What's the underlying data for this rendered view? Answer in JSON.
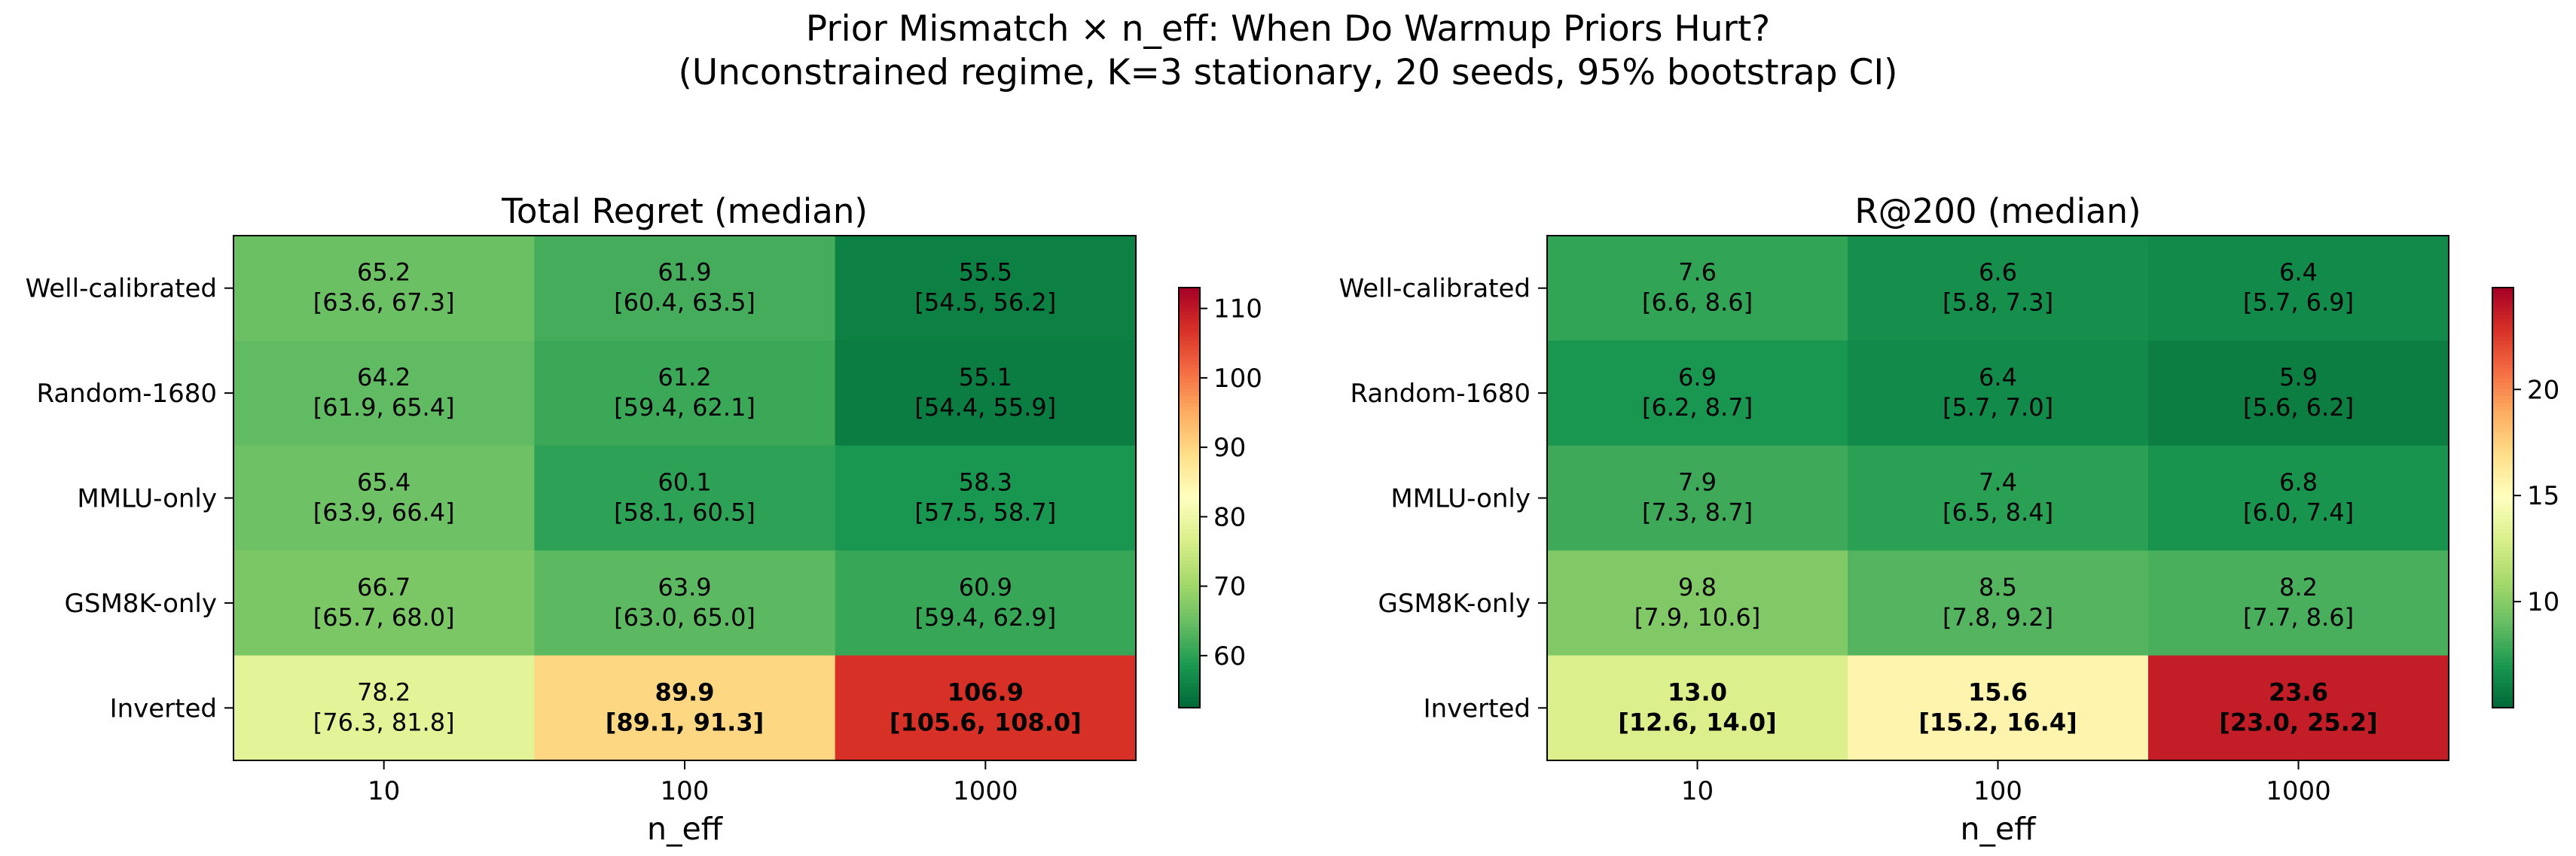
{
  "figure": {
    "title": "Prior Mismatch × n_eff: When Do Warmup Priors Hurt?\n(Unconstrained regime, K=3 stationary, 20 seeds, 95% bootstrap CI)"
  },
  "chart_data": [
    {
      "type": "heatmap",
      "title": "Total Regret (median)",
      "xlabel": "n_eff",
      "ylabel": "",
      "x_categories": [
        "10",
        "100",
        "1000"
      ],
      "y_categories": [
        "Well-calibrated",
        "Random-1680",
        "MMLU-only",
        "GSM8K-only",
        "Inverted"
      ],
      "values": [
        [
          65.2,
          61.9,
          55.5
        ],
        [
          64.2,
          61.2,
          55.1
        ],
        [
          65.4,
          60.1,
          58.3
        ],
        [
          66.7,
          63.9,
          60.9
        ],
        [
          78.2,
          89.9,
          106.9
        ]
      ],
      "cell_text": [
        [
          "65.2",
          "61.9",
          "55.5"
        ],
        [
          "64.2",
          "61.2",
          "55.1"
        ],
        [
          "65.4",
          "60.1",
          "58.3"
        ],
        [
          "66.7",
          "63.9",
          "60.9"
        ],
        [
          "78.2",
          "89.9",
          "106.9"
        ]
      ],
      "ci_text": [
        [
          "[63.6, 67.3]",
          "[60.4, 63.5]",
          "[54.5, 56.2]"
        ],
        [
          "[61.9, 65.4]",
          "[59.4, 62.1]",
          "[54.4, 55.9]"
        ],
        [
          "[63.9, 66.4]",
          "[58.1, 60.5]",
          "[57.5, 58.7]"
        ],
        [
          "[65.7, 68.0]",
          "[63.0, 65.0]",
          "[59.4, 62.9]"
        ],
        [
          "[76.3, 81.8]",
          "[89.1, 91.3]",
          "[105.6, 108.0]"
        ]
      ],
      "bold": [
        [
          false,
          false,
          false
        ],
        [
          false,
          false,
          false
        ],
        [
          false,
          false,
          false
        ],
        [
          false,
          false,
          false
        ],
        [
          false,
          true,
          true
        ]
      ],
      "colormap": "RdYlGn_r",
      "color_range": [
        52.5,
        113
      ],
      "colorbar_ticks": [
        "60",
        "70",
        "80",
        "90",
        "100",
        "110"
      ]
    },
    {
      "type": "heatmap",
      "title": "R@200 (median)",
      "xlabel": "n_eff",
      "ylabel": "",
      "x_categories": [
        "10",
        "100",
        "1000"
      ],
      "y_categories": [
        "Well-calibrated",
        "Random-1680",
        "MMLU-only",
        "GSM8K-only",
        "Inverted"
      ],
      "values": [
        [
          7.6,
          6.6,
          6.4
        ],
        [
          6.9,
          6.4,
          5.9
        ],
        [
          7.9,
          7.4,
          6.8
        ],
        [
          9.8,
          8.5,
          8.2
        ],
        [
          13.0,
          15.6,
          23.6
        ]
      ],
      "cell_text": [
        [
          "7.6",
          "6.6",
          "6.4"
        ],
        [
          "6.9",
          "6.4",
          "5.9"
        ],
        [
          "7.9",
          "7.4",
          "6.8"
        ],
        [
          "9.8",
          "8.5",
          "8.2"
        ],
        [
          "13.0",
          "15.6",
          "23.6"
        ]
      ],
      "ci_text": [
        [
          "[6.6, 8.6]",
          "[5.8, 7.3]",
          "[5.7, 6.9]"
        ],
        [
          "[6.2, 8.7]",
          "[5.7, 7.0]",
          "[5.6, 6.2]"
        ],
        [
          "[7.3, 8.7]",
          "[6.5, 8.4]",
          "[6.0, 7.4]"
        ],
        [
          "[7.9, 10.6]",
          "[7.8, 9.2]",
          "[7.7, 8.6]"
        ],
        [
          "[12.6, 14.0]",
          "[15.2, 16.4]",
          "[23.0, 25.2]"
        ]
      ],
      "bold": [
        [
          false,
          false,
          false
        ],
        [
          false,
          false,
          false
        ],
        [
          false,
          false,
          false
        ],
        [
          false,
          false,
          false
        ],
        [
          true,
          true,
          true
        ]
      ],
      "colormap": "RdYlGn_r",
      "color_range": [
        5.0,
        24.8
      ],
      "colorbar_ticks": [
        "10",
        "15",
        "20"
      ]
    }
  ]
}
